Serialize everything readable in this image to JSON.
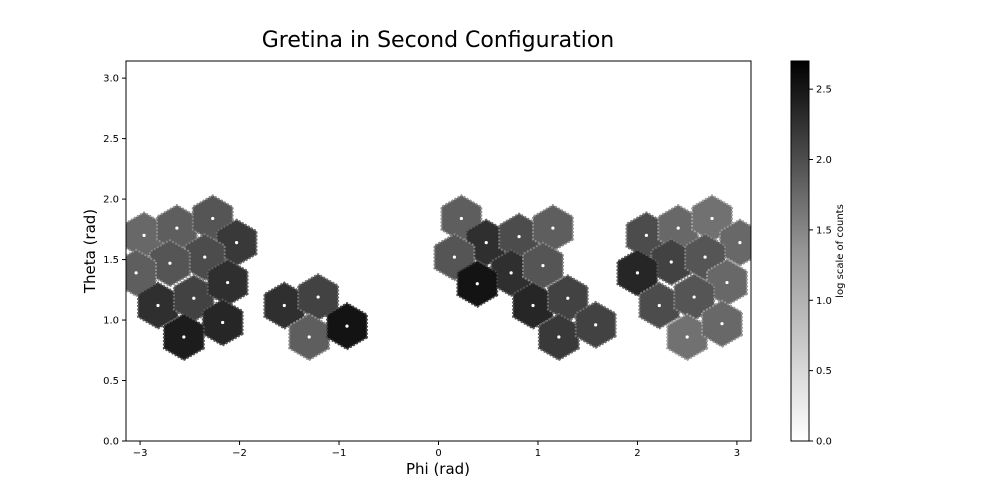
{
  "chart_data": {
    "type": "heatmap",
    "title": "Gretina in Second Configuration",
    "xlabel": "Phi (rad)",
    "ylabel": "Theta (rad)",
    "xlim": [
      -3.1416,
      3.1416
    ],
    "ylim": [
      0,
      3.1416
    ],
    "xticks": [
      -3,
      -2,
      -1,
      0,
      1,
      2,
      3
    ],
    "xtick_labels": [
      "−3",
      "−2",
      "−1",
      "0",
      "1",
      "2",
      "3"
    ],
    "yticks": [
      0.0,
      0.5,
      1.0,
      1.5,
      2.0,
      2.5,
      3.0
    ],
    "ytick_labels": [
      "0.0",
      "0.5",
      "1.0",
      "1.5",
      "2.0",
      "2.5",
      "3.0"
    ],
    "colorbar": {
      "label": "log scale of counts",
      "range": [
        0,
        2.7
      ],
      "colormap": "Greys",
      "ticks": [
        0.0,
        0.5,
        1.0,
        1.5,
        2.0,
        2.5
      ],
      "tick_labels": [
        "0.0",
        "0.5",
        "1.0",
        "1.5",
        "2.0",
        "2.5"
      ]
    },
    "grid": false,
    "detector_crystals": [
      {
        "phi": -2.96,
        "theta": 1.7,
        "value": 1.6
      },
      {
        "phi": -2.63,
        "theta": 1.76,
        "value": 1.7
      },
      {
        "phi": -2.27,
        "theta": 1.84,
        "value": 1.8
      },
      {
        "phi": -2.03,
        "theta": 1.64,
        "value": 2.1
      },
      {
        "phi": -2.35,
        "theta": 1.52,
        "value": 1.9
      },
      {
        "phi": -2.7,
        "theta": 1.47,
        "value": 1.8
      },
      {
        "phi": -3.04,
        "theta": 1.39,
        "value": 1.7
      },
      {
        "phi": -2.82,
        "theta": 1.12,
        "value": 2.2
      },
      {
        "phi": -2.46,
        "theta": 1.18,
        "value": 2.0
      },
      {
        "phi": -2.12,
        "theta": 1.31,
        "value": 2.2
      },
      {
        "phi": -2.17,
        "theta": 0.98,
        "value": 2.3
      },
      {
        "phi": -2.56,
        "theta": 0.86,
        "value": 2.4
      },
      {
        "phi": -1.55,
        "theta": 1.12,
        "value": 2.2
      },
      {
        "phi": -1.21,
        "theta": 1.19,
        "value": 2.0
      },
      {
        "phi": -1.3,
        "theta": 0.86,
        "value": 1.7
      },
      {
        "phi": -0.92,
        "theta": 0.95,
        "value": 2.5
      },
      {
        "phi": 0.23,
        "theta": 1.84,
        "value": 1.7
      },
      {
        "phi": 0.48,
        "theta": 1.64,
        "value": 2.2
      },
      {
        "phi": 0.81,
        "theta": 1.69,
        "value": 1.9
      },
      {
        "phi": 1.15,
        "theta": 1.76,
        "value": 1.7
      },
      {
        "phi": 0.16,
        "theta": 1.52,
        "value": 1.8
      },
      {
        "phi": 0.73,
        "theta": 1.39,
        "value": 2.2
      },
      {
        "phi": 1.05,
        "theta": 1.45,
        "value": 1.8
      },
      {
        "phi": 0.39,
        "theta": 1.3,
        "value": 2.5
      },
      {
        "phi": 0.95,
        "theta": 1.12,
        "value": 2.3
      },
      {
        "phi": 1.3,
        "theta": 1.18,
        "value": 2.0
      },
      {
        "phi": 1.21,
        "theta": 0.86,
        "value": 2.1
      },
      {
        "phi": 1.58,
        "theta": 0.96,
        "value": 2.0
      },
      {
        "phi": 2.09,
        "theta": 1.7,
        "value": 1.9
      },
      {
        "phi": 2.41,
        "theta": 1.76,
        "value": 1.6
      },
      {
        "phi": 2.75,
        "theta": 1.84,
        "value": 1.5
      },
      {
        "phi": 3.03,
        "theta": 1.64,
        "value": 1.6
      },
      {
        "phi": 2.34,
        "theta": 1.48,
        "value": 2.0
      },
      {
        "phi": 2.68,
        "theta": 1.52,
        "value": 1.8
      },
      {
        "phi": 2.0,
        "theta": 1.39,
        "value": 2.3
      },
      {
        "phi": 2.9,
        "theta": 1.31,
        "value": 1.6
      },
      {
        "phi": 2.22,
        "theta": 1.12,
        "value": 1.9
      },
      {
        "phi": 2.57,
        "theta": 1.19,
        "value": 1.8
      },
      {
        "phi": 2.5,
        "theta": 0.86,
        "value": 1.5
      },
      {
        "phi": 2.85,
        "theta": 0.97,
        "value": 1.6
      }
    ]
  }
}
